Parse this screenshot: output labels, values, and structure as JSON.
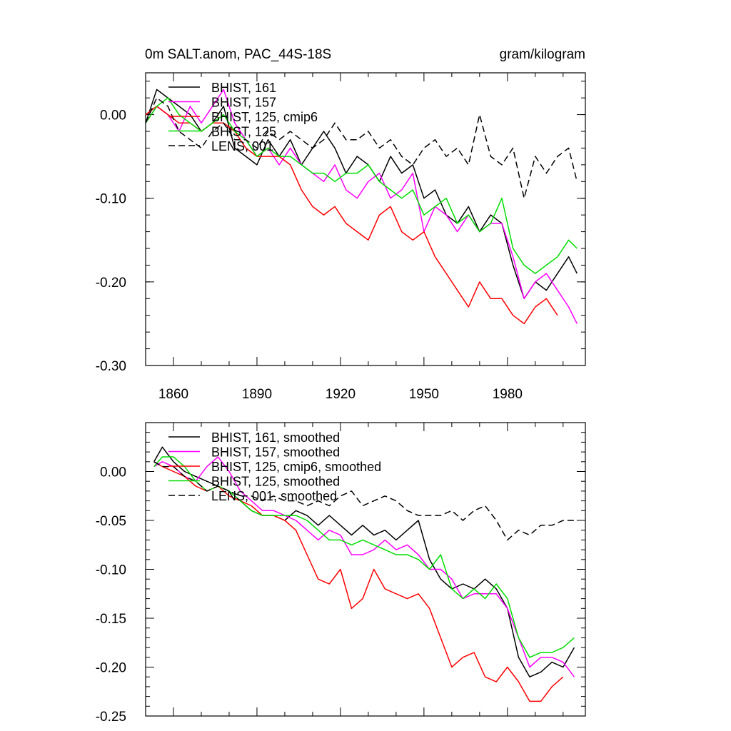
{
  "chart_data": [
    {
      "type": "line",
      "title": "0m SALT.anom, PAC_44S-18S",
      "units": "gram/kilogram",
      "xlim": [
        1850,
        2008
      ],
      "ylim": [
        -0.3,
        0.05
      ],
      "xticks": [
        1860,
        1890,
        1920,
        1950,
        1980
      ],
      "yticks": [
        0.0,
        -0.1,
        -0.2,
        -0.3
      ],
      "ytick_labels": [
        "0.00",
        "-0.10",
        "-0.20",
        "-0.30"
      ],
      "series": [
        {
          "name": "BHIST, 161",
          "color": "#000000",
          "dash": false,
          "x": [
            1850,
            1854,
            1858,
            1862,
            1866,
            1870,
            1874,
            1878,
            1882,
            1886,
            1890,
            1894,
            1898,
            1902,
            1906,
            1910,
            1914,
            1918,
            1922,
            1926,
            1930,
            1934,
            1938,
            1942,
            1946,
            1950,
            1954,
            1958,
            1962,
            1966,
            1970,
            1974,
            1978,
            1982,
            1986,
            1990,
            1994,
            1998,
            2002,
            2005
          ],
          "y": [
            -0.01,
            0.03,
            0.02,
            0.01,
            0.0,
            -0.02,
            -0.01,
            0.01,
            -0.04,
            -0.05,
            -0.06,
            -0.03,
            -0.05,
            -0.03,
            -0.06,
            -0.04,
            -0.02,
            -0.04,
            -0.07,
            -0.05,
            -0.06,
            -0.08,
            -0.05,
            -0.07,
            -0.06,
            -0.1,
            -0.09,
            -0.12,
            -0.13,
            -0.11,
            -0.14,
            -0.12,
            -0.13,
            -0.18,
            -0.22,
            -0.2,
            -0.21,
            -0.19,
            -0.17,
            -0.19
          ]
        },
        {
          "name": "BHIST, 157",
          "color": "#ff00ff",
          "dash": false,
          "x": [
            1850,
            1854,
            1858,
            1862,
            1866,
            1870,
            1874,
            1878,
            1882,
            1886,
            1890,
            1894,
            1898,
            1902,
            1906,
            1910,
            1914,
            1918,
            1922,
            1926,
            1930,
            1934,
            1938,
            1942,
            1946,
            1950,
            1954,
            1958,
            1962,
            1966,
            1970,
            1974,
            1978,
            1982,
            1986,
            1990,
            1994,
            1998,
            2002,
            2005
          ],
          "y": [
            -0.01,
            0.01,
            0.0,
            -0.02,
            0.01,
            -0.01,
            0.01,
            0.03,
            -0.01,
            -0.03,
            -0.05,
            -0.04,
            -0.06,
            -0.04,
            -0.06,
            -0.07,
            -0.08,
            -0.06,
            -0.09,
            -0.1,
            -0.08,
            -0.07,
            -0.1,
            -0.09,
            -0.07,
            -0.14,
            -0.11,
            -0.12,
            -0.14,
            -0.12,
            -0.14,
            -0.13,
            -0.13,
            -0.17,
            -0.22,
            -0.2,
            -0.19,
            -0.21,
            -0.23,
            -0.25
          ]
        },
        {
          "name": "BHIST, 125, cmip6",
          "color": "#ff0000",
          "dash": false,
          "x": [
            1850,
            1854,
            1858,
            1862,
            1866,
            1870,
            1874,
            1878,
            1882,
            1886,
            1890,
            1894,
            1898,
            1902,
            1906,
            1910,
            1914,
            1918,
            1922,
            1926,
            1930,
            1934,
            1938,
            1942,
            1946,
            1950,
            1954,
            1958,
            1962,
            1966,
            1970,
            1974,
            1978,
            1982,
            1986,
            1990,
            1994,
            1998
          ],
          "y": [
            0.0,
            0.01,
            0.0,
            -0.01,
            -0.01,
            -0.02,
            -0.01,
            -0.01,
            -0.02,
            -0.04,
            -0.05,
            -0.05,
            -0.05,
            -0.06,
            -0.09,
            -0.11,
            -0.12,
            -0.11,
            -0.13,
            -0.14,
            -0.15,
            -0.12,
            -0.11,
            -0.14,
            -0.15,
            -0.14,
            -0.17,
            -0.19,
            -0.21,
            -0.23,
            -0.2,
            -0.22,
            -0.22,
            -0.24,
            -0.25,
            -0.23,
            -0.22,
            -0.24
          ]
        },
        {
          "name": "BHIST, 125",
          "color": "#00dd00",
          "dash": false,
          "x": [
            1850,
            1854,
            1858,
            1862,
            1866,
            1870,
            1874,
            1878,
            1882,
            1886,
            1890,
            1894,
            1898,
            1902,
            1906,
            1910,
            1914,
            1918,
            1922,
            1926,
            1930,
            1934,
            1938,
            1942,
            1946,
            1950,
            1954,
            1958,
            1962,
            1966,
            1970,
            1974,
            1978,
            1982,
            1986,
            1990,
            1994,
            1998,
            2002,
            2005
          ],
          "y": [
            -0.01,
            0.01,
            0.02,
            0.0,
            -0.01,
            -0.02,
            -0.01,
            0.0,
            -0.02,
            -0.03,
            -0.05,
            -0.04,
            -0.05,
            -0.05,
            -0.06,
            -0.07,
            -0.07,
            -0.08,
            -0.07,
            -0.07,
            -0.06,
            -0.08,
            -0.09,
            -0.1,
            -0.09,
            -0.12,
            -0.11,
            -0.1,
            -0.13,
            -0.12,
            -0.14,
            -0.13,
            -0.1,
            -0.16,
            -0.18,
            -0.19,
            -0.18,
            -0.17,
            -0.15,
            -0.16
          ]
        },
        {
          "name": "LENS, 001",
          "color": "#000000",
          "dash": true,
          "x": [
            1850,
            1854,
            1858,
            1862,
            1866,
            1870,
            1874,
            1878,
            1882,
            1886,
            1890,
            1894,
            1898,
            1902,
            1906,
            1910,
            1914,
            1918,
            1922,
            1926,
            1930,
            1934,
            1938,
            1942,
            1946,
            1950,
            1954,
            1958,
            1962,
            1966,
            1970,
            1974,
            1978,
            1982,
            1986,
            1990,
            1994,
            1998,
            2002,
            2005
          ],
          "y": [
            -0.01,
            0.02,
            0.01,
            -0.02,
            -0.03,
            -0.04,
            -0.02,
            -0.01,
            -0.03,
            -0.03,
            -0.04,
            -0.02,
            -0.03,
            -0.02,
            -0.03,
            -0.04,
            -0.03,
            -0.01,
            -0.03,
            -0.03,
            -0.02,
            -0.04,
            -0.03,
            -0.05,
            -0.06,
            -0.04,
            -0.03,
            -0.05,
            -0.04,
            -0.06,
            0.0,
            -0.05,
            -0.06,
            -0.04,
            -0.1,
            -0.05,
            -0.07,
            -0.05,
            -0.04,
            -0.08
          ]
        }
      ]
    },
    {
      "type": "line",
      "title": "",
      "xlim": [
        1850,
        2008
      ],
      "ylim": [
        -0.25,
        0.05
      ],
      "xticks": [
        1860,
        1890,
        1920,
        1950,
        1980
      ],
      "yticks": [
        0.0,
        -0.05,
        -0.1,
        -0.15,
        -0.2,
        -0.25
      ],
      "ytick_labels": [
        "0.00",
        "-0.05",
        "-0.10",
        "-0.15",
        "-0.20",
        "-0.25"
      ],
      "series": [
        {
          "name": "BHIST, 161, smoothed",
          "color": "#000000",
          "dash": false,
          "x": [
            1853,
            1856,
            1860,
            1864,
            1868,
            1872,
            1876,
            1880,
            1884,
            1888,
            1892,
            1896,
            1900,
            1904,
            1908,
            1912,
            1916,
            1920,
            1924,
            1928,
            1932,
            1936,
            1940,
            1944,
            1948,
            1952,
            1956,
            1960,
            1964,
            1968,
            1972,
            1976,
            1980,
            1984,
            1988,
            1992,
            1996,
            2000,
            2004
          ],
          "y": [
            0.01,
            0.025,
            0.01,
            0.0,
            -0.005,
            -0.01,
            -0.015,
            -0.02,
            -0.03,
            -0.04,
            -0.045,
            -0.045,
            -0.05,
            -0.04,
            -0.045,
            -0.055,
            -0.045,
            -0.055,
            -0.065,
            -0.055,
            -0.065,
            -0.06,
            -0.07,
            -0.06,
            -0.05,
            -0.09,
            -0.11,
            -0.12,
            -0.115,
            -0.12,
            -0.11,
            -0.12,
            -0.14,
            -0.19,
            -0.21,
            -0.205,
            -0.195,
            -0.2,
            -0.18
          ]
        },
        {
          "name": "BHIST, 157, smoothed",
          "color": "#ff00ff",
          "dash": false,
          "x": [
            1853,
            1856,
            1860,
            1864,
            1868,
            1872,
            1876,
            1880,
            1884,
            1888,
            1892,
            1896,
            1900,
            1904,
            1908,
            1912,
            1916,
            1920,
            1924,
            1928,
            1932,
            1936,
            1940,
            1944,
            1948,
            1952,
            1956,
            1960,
            1964,
            1968,
            1972,
            1976,
            1980,
            1984,
            1988,
            1992,
            1996,
            2000,
            2004
          ],
          "y": [
            0.005,
            0.01,
            0.005,
            -0.005,
            -0.01,
            0.005,
            0.015,
            0.0,
            -0.02,
            -0.03,
            -0.04,
            -0.04,
            -0.045,
            -0.05,
            -0.06,
            -0.07,
            -0.06,
            -0.065,
            -0.085,
            -0.085,
            -0.08,
            -0.07,
            -0.08,
            -0.075,
            -0.085,
            -0.1,
            -0.1,
            -0.11,
            -0.13,
            -0.125,
            -0.125,
            -0.125,
            -0.14,
            -0.17,
            -0.2,
            -0.19,
            -0.19,
            -0.195,
            -0.21
          ]
        },
        {
          "name": "BHIST, 125, cmip6, smoothed",
          "color": "#ff0000",
          "dash": false,
          "x": [
            1853,
            1856,
            1860,
            1864,
            1868,
            1872,
            1876,
            1880,
            1884,
            1888,
            1892,
            1896,
            1900,
            1904,
            1908,
            1912,
            1916,
            1920,
            1924,
            1928,
            1932,
            1936,
            1940,
            1944,
            1948,
            1952,
            1956,
            1960,
            1964,
            1968,
            1972,
            1976,
            1980,
            1984,
            1988,
            1992,
            1996,
            2000
          ],
          "y": [
            0.01,
            0.005,
            0.0,
            -0.005,
            -0.015,
            -0.02,
            -0.015,
            -0.025,
            -0.03,
            -0.035,
            -0.045,
            -0.045,
            -0.05,
            -0.06,
            -0.085,
            -0.11,
            -0.115,
            -0.1,
            -0.14,
            -0.13,
            -0.1,
            -0.12,
            -0.125,
            -0.13,
            -0.125,
            -0.14,
            -0.17,
            -0.2,
            -0.19,
            -0.185,
            -0.21,
            -0.215,
            -0.2,
            -0.215,
            -0.235,
            -0.235,
            -0.22,
            -0.21
          ]
        },
        {
          "name": "BHIST, 125, smoothed",
          "color": "#00dd00",
          "dash": false,
          "x": [
            1853,
            1856,
            1860,
            1864,
            1868,
            1872,
            1876,
            1880,
            1884,
            1888,
            1892,
            1896,
            1900,
            1904,
            1908,
            1912,
            1916,
            1920,
            1924,
            1928,
            1932,
            1936,
            1940,
            1944,
            1948,
            1952,
            1956,
            1960,
            1964,
            1968,
            1972,
            1976,
            1980,
            1984,
            1988,
            1992,
            1996,
            2000,
            2004
          ],
          "y": [
            0.005,
            0.015,
            0.015,
            0.005,
            -0.01,
            -0.02,
            -0.015,
            -0.02,
            -0.03,
            -0.04,
            -0.045,
            -0.045,
            -0.045,
            -0.045,
            -0.05,
            -0.06,
            -0.07,
            -0.07,
            -0.075,
            -0.07,
            -0.075,
            -0.08,
            -0.085,
            -0.085,
            -0.09,
            -0.1,
            -0.085,
            -0.12,
            -0.13,
            -0.12,
            -0.13,
            -0.115,
            -0.13,
            -0.17,
            -0.19,
            -0.185,
            -0.185,
            -0.18,
            -0.17
          ]
        },
        {
          "name": "LENS, 001, smoothed",
          "color": "#000000",
          "dash": true,
          "x": [
            1853,
            1856,
            1860,
            1864,
            1868,
            1872,
            1876,
            1880,
            1884,
            1888,
            1892,
            1896,
            1900,
            1904,
            1908,
            1912,
            1916,
            1920,
            1924,
            1928,
            1932,
            1936,
            1940,
            1944,
            1948,
            1952,
            1956,
            1960,
            1964,
            1968,
            1972,
            1976,
            1980,
            1984,
            1988,
            1992,
            1996,
            2000,
            2004
          ],
          "y": [
            0.01,
            0.005,
            0.005,
            -0.005,
            -0.01,
            -0.02,
            -0.015,
            -0.02,
            -0.025,
            -0.025,
            -0.03,
            -0.025,
            -0.03,
            -0.03,
            -0.035,
            -0.03,
            -0.035,
            -0.025,
            -0.02,
            -0.035,
            -0.03,
            -0.025,
            -0.03,
            -0.04,
            -0.045,
            -0.045,
            -0.045,
            -0.04,
            -0.05,
            -0.04,
            -0.035,
            -0.05,
            -0.07,
            -0.06,
            -0.065,
            -0.055,
            -0.055,
            -0.05,
            -0.05
          ]
        }
      ]
    }
  ]
}
